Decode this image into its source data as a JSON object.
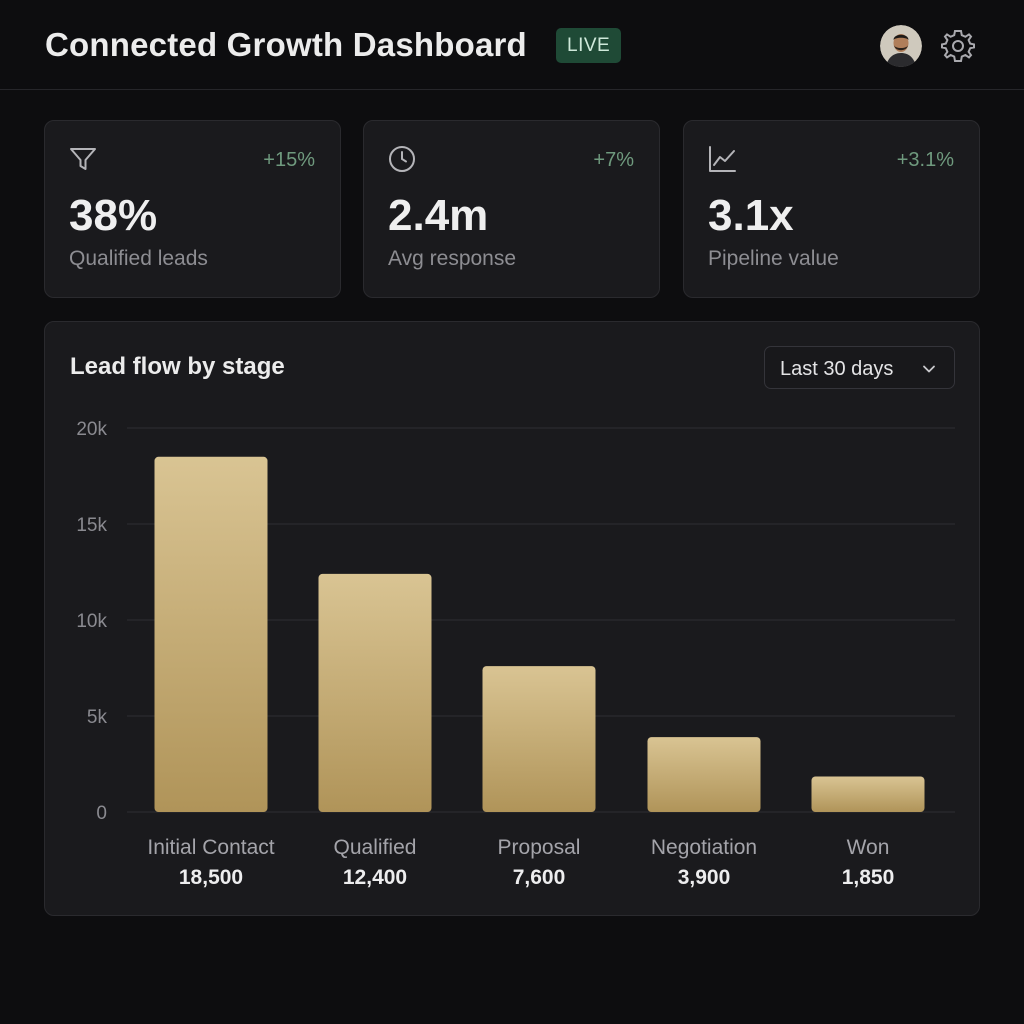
{
  "header": {
    "title": "Connected Growth Dashboard",
    "live_badge": "LIVE",
    "avatar_icon": "user-avatar",
    "settings_icon": "gear-icon"
  },
  "kpis": [
    {
      "icon": "filter-icon",
      "delta": "+15%",
      "value": "38%",
      "label": "Qualified leads"
    },
    {
      "icon": "clock-icon",
      "delta": "+7%",
      "value": "2.4m",
      "label": "Avg response"
    },
    {
      "icon": "trend-line-icon",
      "delta": "+3.1%",
      "value": "3.1x",
      "label": "Pipeline value"
    }
  ],
  "chart": {
    "title": "Lead flow by stage",
    "range_label": "Last 30 days"
  },
  "colors": {
    "accent_green": "#6f9a7e",
    "bar_top": "#d9c493",
    "bar_bottom": "#b09459"
  },
  "chart_data": {
    "type": "bar",
    "categories": [
      "Initial Contact",
      "Qualified",
      "Proposal",
      "Negotiation",
      "Won"
    ],
    "values": [
      18500,
      12400,
      7600,
      3900,
      1850
    ],
    "value_labels": [
      "18,500",
      "12,400",
      "7,600",
      "3,900",
      "1,850"
    ],
    "yticks": [
      "0",
      "5k",
      "10k",
      "15k",
      "20k"
    ],
    "ylim": [
      0,
      20000
    ],
    "grid": true
  }
}
